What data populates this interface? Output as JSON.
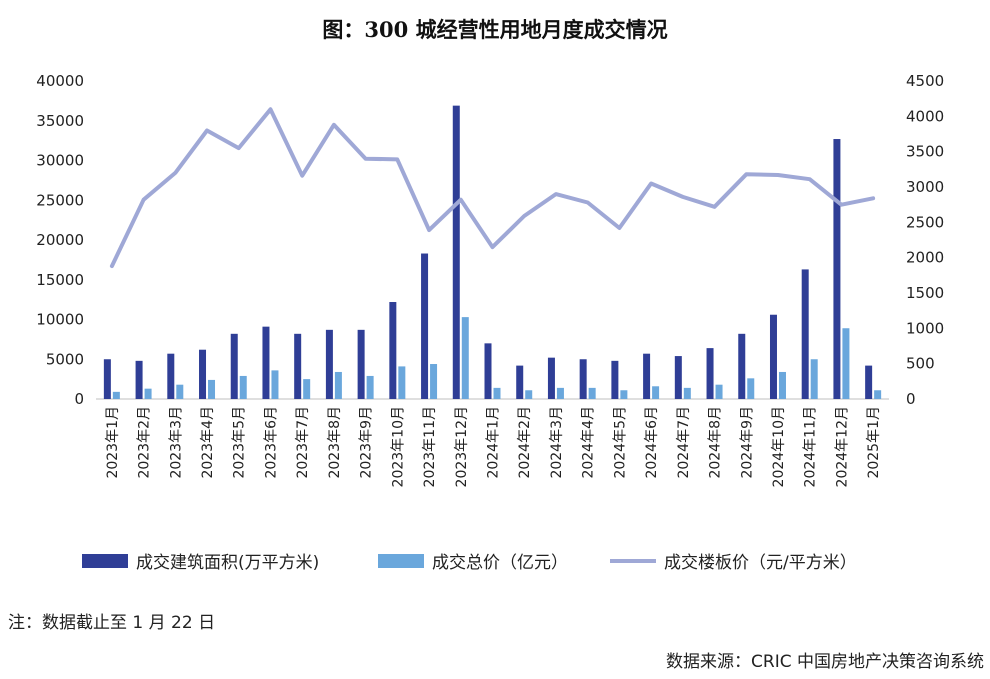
{
  "title": "图：300 城经营性用地月度成交情况",
  "note": "注：数据截止至 1 月 22 日",
  "source": "数据来源：CRIC 中国房地产决策咨询系统",
  "colors": {
    "area": "#2f3e96",
    "total": "#6aa7dc",
    "price": "#9fa8d6"
  },
  "chart_data": {
    "type": "bar",
    "categories": [
      "2023年1月",
      "2023年2月",
      "2023年3月",
      "2023年4月",
      "2023年5月",
      "2023年6月",
      "2023年7月",
      "2023年8月",
      "2023年9月",
      "2023年10月",
      "2023年11月",
      "2023年12月",
      "2024年1月",
      "2024年2月",
      "2024年3月",
      "2024年4月",
      "2024年5月",
      "2024年6月",
      "2024年7月",
      "2024年8月",
      "2024年9月",
      "2024年10月",
      "2024年11月",
      "2024年12月",
      "2025年1月"
    ],
    "series": [
      {
        "name": "成交建筑面积(万平方米)",
        "type": "bar",
        "axis": "left",
        "values": [
          5000,
          4800,
          5700,
          6200,
          8200,
          9100,
          8200,
          8700,
          8700,
          12200,
          18300,
          36900,
          7000,
          4200,
          5200,
          5000,
          4800,
          5700,
          5400,
          6400,
          8200,
          10600,
          16300,
          32700,
          4200
        ]
      },
      {
        "name": "成交总价（亿元）",
        "type": "bar",
        "axis": "left",
        "values": [
          900,
          1300,
          1800,
          2400,
          2900,
          3600,
          2500,
          3400,
          2900,
          4100,
          4400,
          10300,
          1400,
          1100,
          1400,
          1400,
          1100,
          1600,
          1400,
          1800,
          2600,
          3400,
          5000,
          8900,
          1100
        ]
      },
      {
        "name": "成交楼板价（元/平方米）",
        "type": "line",
        "axis": "right",
        "values": [
          1880,
          2820,
          3200,
          3800,
          3550,
          4100,
          3160,
          3880,
          3400,
          3390,
          2390,
          2820,
          2150,
          2590,
          2900,
          2780,
          2420,
          3050,
          2860,
          2720,
          3180,
          3170,
          3110,
          2750,
          2840
        ]
      }
    ],
    "left_axis": {
      "min": 0,
      "max": 40000,
      "step": 5000,
      "ticks": [
        "0",
        "5000",
        "10000",
        "15000",
        "20000",
        "25000",
        "30000",
        "35000",
        "40000"
      ]
    },
    "right_axis": {
      "min": 0,
      "max": 4500,
      "step": 500,
      "ticks": [
        "0",
        "500",
        "1000",
        "1500",
        "2000",
        "2500",
        "3000",
        "3500",
        "4000",
        "4500"
      ]
    },
    "grid": false,
    "legend_position": "bottom"
  }
}
